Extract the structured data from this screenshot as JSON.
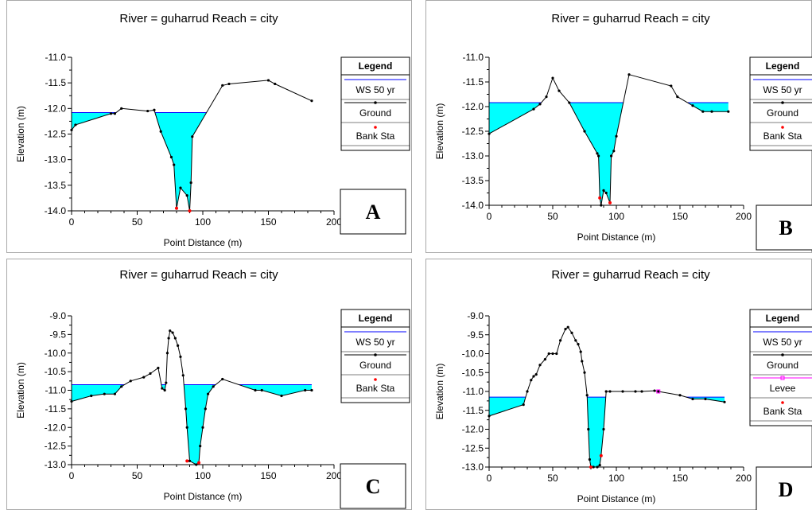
{
  "figure_panels": [
    {
      "letter": "A",
      "title": "River = guharrud   Reach = city"
    },
    {
      "letter": "B",
      "title": "River = guharrud   Reach = city"
    },
    {
      "letter": "C",
      "title": "River = guharrud   Reach = city"
    },
    {
      "letter": "D",
      "title": "River = guharrud   Reach = city"
    }
  ],
  "colors": {
    "water": "#00ffff",
    "ws_line": "#0000ff",
    "ground": "#000000",
    "bank": "#ff0000",
    "levee": "#ff00ff"
  },
  "chart_data": [
    {
      "type": "area",
      "title": "River = guharrud   Reach = city",
      "xlabel": "Point Distance (m)",
      "ylabel": "Elevation (m)",
      "xlim": [
        0,
        200
      ],
      "ylim": [
        -14.0,
        -11.0
      ],
      "xticks": [
        "0",
        "50",
        "100",
        "150",
        "200"
      ],
      "yticks": [
        "-11.0",
        "-11.5",
        "-12.0",
        "-12.5",
        "-13.0",
        "-13.5",
        "-14.0"
      ],
      "grid": false,
      "legend_position": "right",
      "legend": {
        "title": "Legend",
        "items": [
          "WS 50 yr",
          "Ground",
          "Bank Sta"
        ]
      },
      "ws_elevation": -12.08,
      "ground": {
        "x": [
          0,
          3,
          30,
          33,
          38,
          58,
          63,
          68,
          76,
          78,
          80,
          83,
          88,
          90,
          91,
          92,
          115,
          120,
          150,
          155,
          183
        ],
        "y": [
          -12.42,
          -12.32,
          -12.1,
          -12.1,
          -12.0,
          -12.05,
          -12.03,
          -12.45,
          -12.95,
          -13.1,
          -13.95,
          -13.55,
          -13.7,
          -14.0,
          -13.45,
          -12.55,
          -11.55,
          -11.52,
          -11.45,
          -11.52,
          -11.85
        ]
      },
      "bank_sta": [
        {
          "x": 80,
          "y": -13.95
        },
        {
          "x": 90,
          "y": -14.0
        }
      ]
    },
    {
      "type": "area",
      "title": "River = guharrud   Reach = city",
      "xlabel": "Point Distance (m)",
      "ylabel": "Elevation (m)",
      "xlim": [
        0,
        200
      ],
      "ylim": [
        -14.0,
        -11.0
      ],
      "xticks": [
        "0",
        "50",
        "100",
        "150",
        "200"
      ],
      "yticks": [
        "-11.0",
        "-11.5",
        "-12.0",
        "-12.5",
        "-13.0",
        "-13.5",
        "-14.0"
      ],
      "grid": false,
      "legend_position": "right",
      "legend": {
        "title": "Legend",
        "items": [
          "WS 50 yr",
          "Ground",
          "Bank Sta"
        ]
      },
      "ws_elevation": -11.92,
      "ground": {
        "x": [
          0,
          35,
          40,
          45,
          50,
          55,
          63,
          75,
          85,
          86,
          87,
          88,
          90,
          92,
          95,
          96,
          98,
          100,
          110,
          143,
          148,
          160,
          168,
          175,
          188
        ],
        "y": [
          -12.55,
          -12.05,
          -11.95,
          -11.8,
          -11.42,
          -11.68,
          -11.92,
          -12.5,
          -12.95,
          -13.0,
          -13.85,
          -14.0,
          -13.7,
          -13.75,
          -13.95,
          -13.0,
          -12.9,
          -12.6,
          -11.35,
          -11.58,
          -11.8,
          -11.98,
          -12.1,
          -12.1,
          -12.1
        ]
      },
      "bank_sta": [
        {
          "x": 87,
          "y": -13.85
        },
        {
          "x": 95,
          "y": -13.95
        }
      ]
    },
    {
      "type": "area",
      "title": "River = guharrud   Reach = city",
      "xlabel": "Point Distance (m)",
      "ylabel": "Elevation (m)",
      "xlim": [
        0,
        200
      ],
      "ylim": [
        -13.0,
        -9.0
      ],
      "xticks": [
        "0",
        "50",
        "100",
        "150",
        "200"
      ],
      "yticks": [
        "-9.0",
        "-9.5",
        "-10.0",
        "-10.5",
        "-11.0",
        "-11.5",
        "-12.0",
        "-12.5",
        "-13.0"
      ],
      "grid": false,
      "legend_position": "right",
      "legend": {
        "title": "Legend",
        "items": [
          "WS 50 yr",
          "Ground",
          "Bank Sta"
        ]
      },
      "ws_elevation": -10.85,
      "ground": {
        "x": [
          0,
          15,
          25,
          33,
          38,
          45,
          55,
          60,
          66,
          69,
          71,
          72,
          73,
          74,
          75,
          77,
          79,
          81,
          83,
          85,
          87,
          88,
          90,
          95,
          97,
          98,
          100,
          102,
          104,
          108,
          115,
          140,
          145,
          160,
          178,
          183
        ],
        "y": [
          -11.3,
          -11.15,
          -11.1,
          -11.1,
          -10.9,
          -10.75,
          -10.65,
          -10.55,
          -10.4,
          -10.95,
          -11.0,
          -10.8,
          -10.0,
          -9.6,
          -9.4,
          -9.45,
          -9.6,
          -9.8,
          -10.1,
          -10.6,
          -11.5,
          -12.0,
          -12.9,
          -13.0,
          -12.95,
          -12.5,
          -12.0,
          -11.5,
          -11.1,
          -10.9,
          -10.7,
          -11.0,
          -11.0,
          -11.15,
          -11.0,
          -11.0
        ]
      },
      "bank_sta": [
        {
          "x": 88,
          "y": -12.9
        },
        {
          "x": 97,
          "y": -12.95
        }
      ]
    },
    {
      "type": "area",
      "title": "River = guharrud   Reach = city",
      "xlabel": "Point Distance (m)",
      "ylabel": "Elevation (m)",
      "xlim": [
        0,
        200
      ],
      "ylim": [
        -13.0,
        -9.0
      ],
      "xticks": [
        "0",
        "50",
        "100",
        "150",
        "200"
      ],
      "yticks": [
        "-9.0",
        "-9.5",
        "-10.0",
        "-10.5",
        "-11.0",
        "-11.5",
        "-12.0",
        "-12.5",
        "-13.0"
      ],
      "grid": false,
      "legend_position": "right",
      "legend": {
        "title": "Legend",
        "items": [
          "WS 50 yr",
          "Ground",
          "Levee",
          "Bank Sta"
        ]
      },
      "ws_elevation": -11.15,
      "ground": {
        "x": [
          0,
          27,
          30,
          33,
          35,
          37,
          40,
          44,
          47,
          50,
          53,
          56,
          60,
          62,
          65,
          68,
          70,
          72,
          73,
          75,
          77,
          78,
          79,
          80,
          82,
          85,
          87,
          88,
          90,
          92,
          95,
          105,
          115,
          120,
          130,
          133,
          150,
          160,
          170,
          185
        ],
        "y": [
          -11.65,
          -11.35,
          -11.0,
          -10.7,
          -10.6,
          -10.55,
          -10.3,
          -10.15,
          -10.0,
          -10.0,
          -10.0,
          -9.65,
          -9.35,
          -9.3,
          -9.45,
          -9.65,
          -9.75,
          -9.95,
          -10.2,
          -10.5,
          -11.1,
          -12.0,
          -12.8,
          -13.0,
          -13.0,
          -13.0,
          -12.95,
          -12.7,
          -12.0,
          -11.0,
          -11.0,
          -11.0,
          -11.0,
          -11.0,
          -10.98,
          -11.0,
          -11.1,
          -11.2,
          -11.2,
          -11.28
        ]
      },
      "bank_sta": [
        {
          "x": 80,
          "y": -13.0
        },
        {
          "x": 88,
          "y": -12.7
        }
      ],
      "levee": [
        {
          "x": 133,
          "y": -11.0
        }
      ]
    }
  ]
}
